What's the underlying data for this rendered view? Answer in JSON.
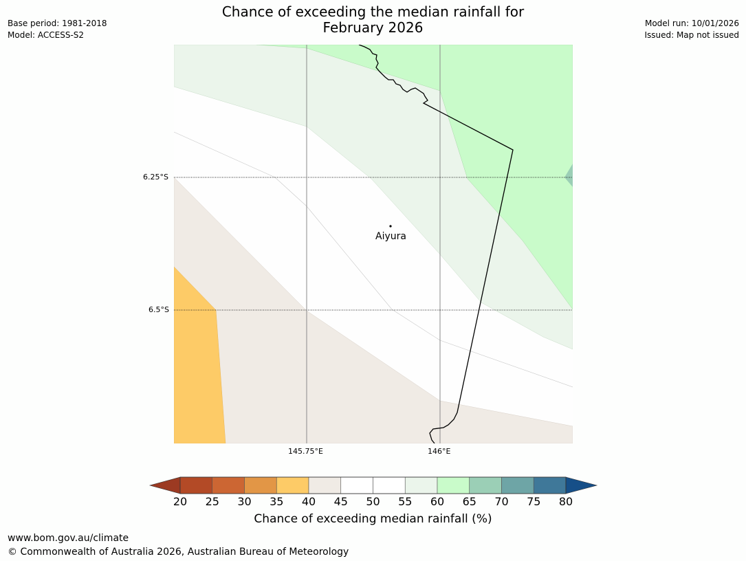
{
  "header": {
    "title_line1": "Chance of exceeding the median rainfall for",
    "title_line2": "February 2026",
    "base_period": "Base period: 1981-2018",
    "model": "Model: ACCESS-S2",
    "model_run": "Model run: 10/01/2026",
    "issued": "Issued: Map not issued"
  },
  "map": {
    "lat_labels": [
      "6.25°S",
      "6.5°S"
    ],
    "lon_labels": [
      "145.75°E",
      "146°E"
    ],
    "place": {
      "name": "Aiyura"
    }
  },
  "colorbar": {
    "label": "Chance of exceeding median rainfall (%)",
    "ticks": [
      "20",
      "25",
      "30",
      "35",
      "40",
      "45",
      "50",
      "55",
      "60",
      "65",
      "70",
      "75",
      "80"
    ],
    "colors": [
      "#9c3a22",
      "#b34a26",
      "#cc6633",
      "#e29646",
      "#fdcb67",
      "#f0ebe5",
      "#ffffff",
      "#ffffff",
      "#ebf5eb",
      "#c9fbca",
      "#9bcfb6",
      "#6ea5a6",
      "#3f7899",
      "#164f88"
    ]
  },
  "footer": {
    "url": "www.bom.gov.au/climate",
    "copyright": "© Commonwealth of Australia 2026, Australian Bureau of Meteorology"
  }
}
